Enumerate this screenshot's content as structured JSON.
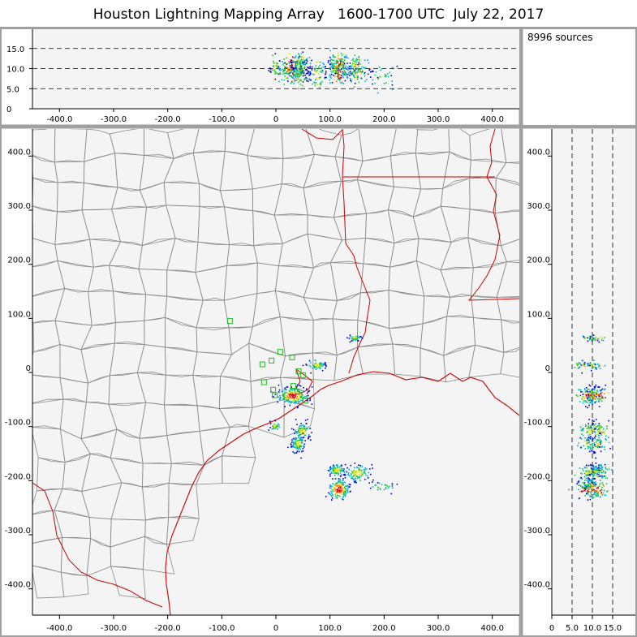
{
  "title": "Houston Lightning Mapping Array   1600-1700 UTC  July 22, 2017",
  "source_count": "8996 sources",
  "top_panel": {
    "y_ticks": [
      "0",
      "5.0",
      "10.0",
      "15.0"
    ],
    "x_ticks": [
      "-400.0",
      "-300.0",
      "-200.0",
      "-100.0",
      "0",
      "100.0",
      "200.0",
      "300.0",
      "400.0"
    ],
    "dashed_lines": [
      5,
      10,
      15
    ]
  },
  "map_panel": {
    "y_ticks": [
      "400.0",
      "300.0",
      "200.0",
      "100.0",
      "0",
      "-100.0",
      "-200.0",
      "-300.0",
      "-400.0"
    ],
    "x_ticks": [
      "-400.0",
      "-300.0",
      "-200.0",
      "-100.0",
      "0",
      "100.0",
      "200.0",
      "300.0",
      "400.0"
    ]
  },
  "side_panel": {
    "y_ticks": [
      "400.0",
      "300.0",
      "200.0",
      "100.0",
      "0",
      "-100.0",
      "-200.0",
      "-300.0",
      "-400.0"
    ],
    "x_ticks": [
      "0",
      "5.0",
      "10.0",
      "15.0"
    ],
    "dashed_lines": [
      5,
      10,
      15
    ]
  },
  "colors": {
    "background": "#f4f4f4",
    "frame": "#a0a0a0",
    "coast_state": "#cc0000",
    "county": "#8a8a8a",
    "station": "#22bb22"
  },
  "stations": [
    [
      -85,
      95
    ],
    [
      -25,
      15
    ],
    [
      -22,
      -18
    ],
    [
      -8,
      22
    ],
    [
      -5,
      -32
    ],
    [
      8,
      38
    ],
    [
      -2,
      -42
    ],
    [
      30,
      28
    ],
    [
      32,
      -25
    ],
    [
      40,
      -35
    ],
    [
      50,
      -5
    ],
    [
      55,
      -52
    ],
    [
      42,
      2
    ]
  ],
  "source_clusters": [
    {
      "x": 145,
      "y": 65,
      "z": 10,
      "sx": 6,
      "sy": 3,
      "n": 40
    },
    {
      "x": 75,
      "y": 15,
      "z": 9,
      "sx": 8,
      "sy": 5,
      "n": 60
    },
    {
      "x": 30,
      "y": -42,
      "z": 10,
      "sx": 14,
      "sy": 8,
      "n": 180
    },
    {
      "x": -3,
      "y": -98,
      "z": 10,
      "sx": 5,
      "sy": 4,
      "n": 30
    },
    {
      "x": 48,
      "y": -108,
      "z": 10,
      "sx": 8,
      "sy": 8,
      "n": 80
    },
    {
      "x": 40,
      "y": -130,
      "z": 10,
      "sx": 6,
      "sy": 8,
      "n": 100
    },
    {
      "x": 112,
      "y": -180,
      "z": 11,
      "sx": 8,
      "sy": 6,
      "n": 80
    },
    {
      "x": 150,
      "y": -185,
      "z": 10,
      "sx": 12,
      "sy": 8,
      "n": 90
    },
    {
      "x": 115,
      "y": -215,
      "z": 10,
      "sx": 10,
      "sy": 10,
      "n": 150
    },
    {
      "x": 195,
      "y": -210,
      "z": 8,
      "sx": 12,
      "sy": 4,
      "n": 30
    }
  ]
}
